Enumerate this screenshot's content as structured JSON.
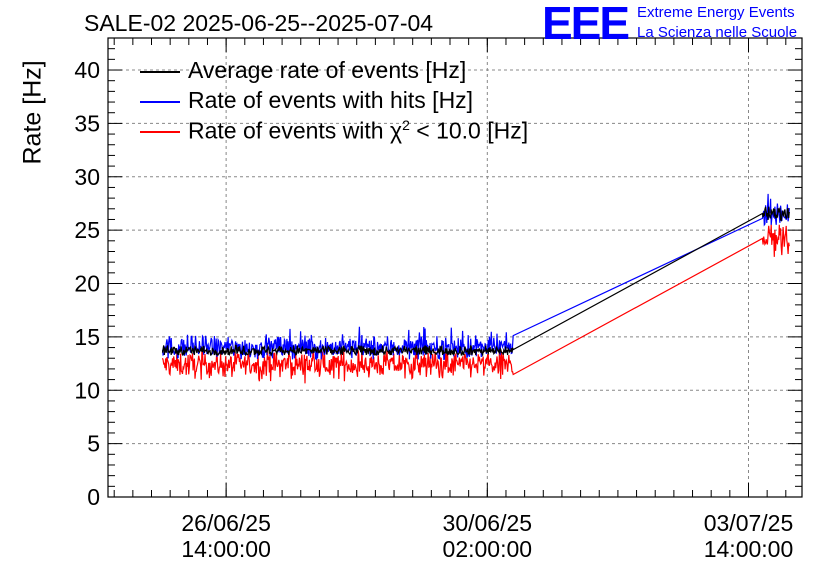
{
  "colors": {
    "average": "#000000",
    "hits": "#0000ff",
    "chi2": "#ff0000",
    "grid": "#888888",
    "brand": "#0000ff"
  },
  "title": "SALE-02 2025-06-25--2025-07-04",
  "logo": {
    "text": "EEE",
    "line1": "Extreme Energy Events",
    "line2": "La Scienza nelle Scuole"
  },
  "legend": {
    "average": "Average rate of events [Hz]",
    "hits": "Rate of events with hits [Hz]",
    "chi2_prefix": "Rate of events with χ",
    "chi2_sup": "2",
    "chi2_suffix": " < 10.0 [Hz]"
  },
  "chart_data": {
    "type": "line",
    "title": "SALE-02 2025-06-25--2025-07-04",
    "xlabel": "",
    "ylabel": "Rate [Hz]",
    "ylim": [
      0,
      43
    ],
    "yticks": [
      0,
      5,
      10,
      15,
      20,
      25,
      30,
      35,
      40
    ],
    "x_unit": "days since 2025-06-25 00:00",
    "xlim": [
      0,
      9.3
    ],
    "xticks": [
      {
        "x": 1.583,
        "label1": "26/06/25",
        "label2": "14:00:00"
      },
      {
        "x": 5.083,
        "label1": "30/06/25",
        "label2": "02:00:00"
      },
      {
        "x": 8.583,
        "label1": "03/07/25",
        "label2": "14:00:00"
      }
    ],
    "grid": true,
    "series": [
      {
        "name": "Average rate of events [Hz]",
        "key": "average",
        "segments": [
          {
            "x_start": 0.73,
            "x_end": 5.43,
            "mean": 13.7,
            "noise": 0.25,
            "min": 13.3,
            "max": 14.2
          },
          {
            "x_start": 8.77,
            "x_end": 9.13,
            "mean": 26.6,
            "noise": 0.4,
            "min": 25.9,
            "max": 27.2
          }
        ]
      },
      {
        "name": "Rate of events with hits [Hz]",
        "key": "hits",
        "segments": [
          {
            "x_start": 0.73,
            "x_end": 5.43,
            "mean": 14.0,
            "noise": 0.55,
            "min": 12.9,
            "max": 16.1
          },
          {
            "x_start": 8.77,
            "x_end": 9.13,
            "mean": 26.6,
            "noise": 0.6,
            "min": 25.5,
            "max": 28.6
          }
        ]
      },
      {
        "name": "Rate of events with χ2 < 10.0 [Hz]",
        "key": "chi2",
        "segments": [
          {
            "x_start": 0.73,
            "x_end": 5.43,
            "mean": 12.4,
            "noise": 0.6,
            "min": 10.6,
            "max": 14.4
          },
          {
            "x_start": 8.77,
            "x_end": 9.13,
            "mean": 24.3,
            "noise": 1.0,
            "min": 21.3,
            "max": 26.2
          }
        ]
      }
    ],
    "annotations": [
      "EEE",
      "Extreme Energy Events",
      "La Scienza nelle Scuole"
    ]
  }
}
